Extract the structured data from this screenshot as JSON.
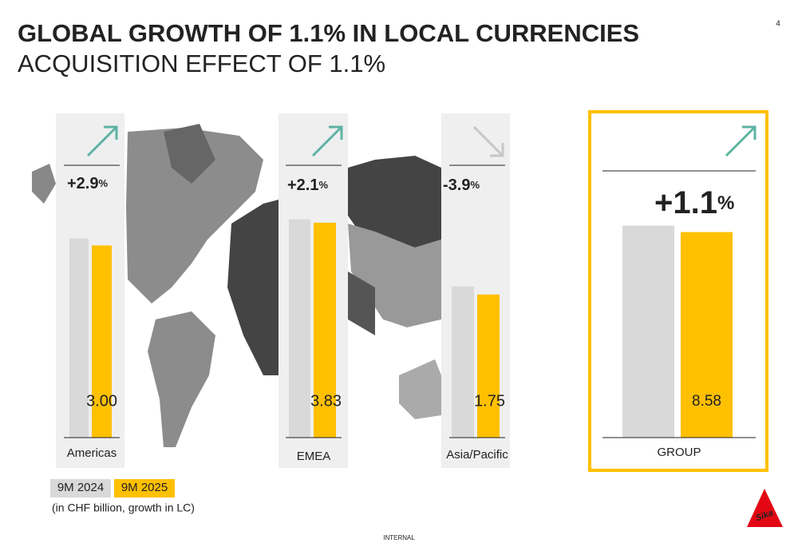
{
  "header": {
    "title": "GLOBAL GROWTH OF 1.1% IN LOCAL CURRENCIES",
    "subtitle": "ACQUISITION EFFECT OF 1.1%",
    "page_number": "4"
  },
  "note": "(in CHF billion, growth in LC)",
  "footer": "INTERNAL",
  "logo": "Sika",
  "chart_data": [
    {
      "type": "bar",
      "categories": [
        "Americas"
      ],
      "growth": {
        "value": "+2.9",
        "unit": "%"
      },
      "trend": "up",
      "ylim": [
        0,
        3.74
      ],
      "series": [
        {
          "name": "9M 2024",
          "color": "#d9d9d9",
          "values": [
            3.11
          ]
        },
        {
          "name": "9M 2025",
          "color": "#ffc000",
          "values": [
            3.0
          ],
          "value_labels": [
            "3.00"
          ]
        }
      ]
    },
    {
      "type": "bar",
      "categories": [
        "EMEA"
      ],
      "growth": {
        "value": "+2.1",
        "unit": "%"
      },
      "trend": "up",
      "ylim": [
        0,
        4.27
      ],
      "series": [
        {
          "name": "9M 2024",
          "color": "#d9d9d9",
          "values": [
            3.89
          ]
        },
        {
          "name": "9M 2025",
          "color": "#ffc000",
          "values": [
            3.83
          ],
          "value_labels": [
            "3.83"
          ]
        }
      ]
    },
    {
      "type": "bar",
      "categories": [
        "Asia/Pacific"
      ],
      "growth": {
        "value": "-3.9",
        "unit": "%"
      },
      "trend": "down",
      "ylim": [
        0,
        2.93
      ],
      "series": [
        {
          "name": "9M 2024",
          "color": "#d9d9d9",
          "values": [
            1.85
          ]
        },
        {
          "name": "9M 2025",
          "color": "#ffc000",
          "values": [
            1.75
          ],
          "value_labels": [
            "1.75"
          ]
        }
      ]
    },
    {
      "type": "bar",
      "categories": [
        "GROUP"
      ],
      "growth": {
        "value": "+1.1",
        "unit": "%"
      },
      "trend": "up",
      "ylim": [
        0,
        10
      ],
      "series": [
        {
          "name": "9M 2024",
          "color": "#d9d9d9",
          "values": [
            8.85
          ]
        },
        {
          "name": "9M 2025",
          "color": "#ffc000",
          "values": [
            8.58
          ],
          "value_labels": [
            "8.58"
          ]
        }
      ]
    }
  ]
}
